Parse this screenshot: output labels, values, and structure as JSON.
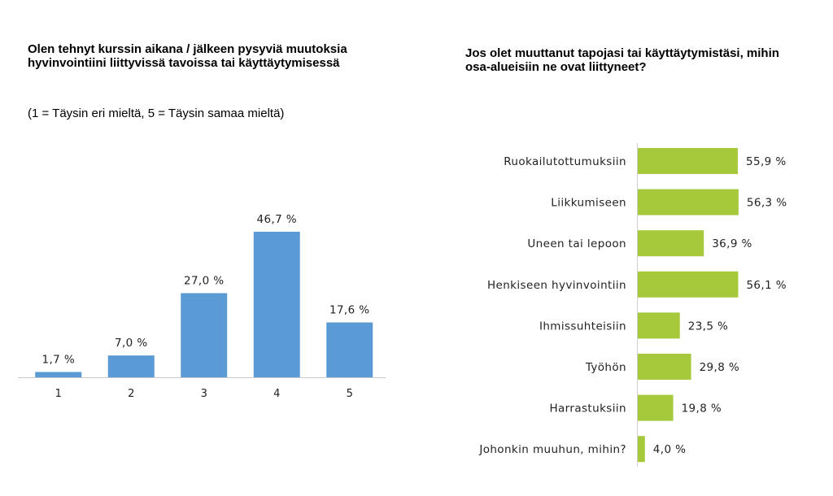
{
  "chart_data": [
    {
      "type": "bar",
      "title": "Olen tehnyt kurssin aikana / jälkeen pysyviä muutoksia hyvinvointiini liittyvissä tavoissa tai käyttäytymisessä",
      "subtitle": "(1 = Täysin eri mieltä, 5 = Täysin samaa mieltä)",
      "categories": [
        "1",
        "2",
        "3",
        "4",
        "5"
      ],
      "values": [
        1.7,
        7.0,
        27.0,
        46.7,
        17.6
      ],
      "value_labels": [
        "1,7 %",
        "7,0 %",
        "27,0 %",
        "46,7 %",
        "17,6 %"
      ],
      "ylim": [
        0,
        50
      ],
      "orientation": "vertical",
      "grid": false,
      "color": "#5b9bd5"
    },
    {
      "type": "bar",
      "title": "Jos olet muuttanut tapojasi tai käyttäytymistäsi, mihin osa-alueisiin ne ovat liittyneet?",
      "categories": [
        "Ruokailutottumuksiin",
        "Liikkumiseen",
        "Uneen tai lepoon",
        "Henkiseen hyvinvointiin",
        "Ihmissuhteisiin",
        "Työhön",
        "Harrastuksiin",
        "Johonkin muuhun, mihin?"
      ],
      "values": [
        55.9,
        56.3,
        36.9,
        56.1,
        23.5,
        29.8,
        19.8,
        4.0
      ],
      "value_labels": [
        "55,9 %",
        "56,3 %",
        "36,9 %",
        "56,1 %",
        "23,5 %",
        "29,8 %",
        "19,8 %",
        "4,0 %"
      ],
      "xlim": [
        0,
        60
      ],
      "orientation": "horizontal",
      "grid": false,
      "color": "#a5c93a"
    }
  ]
}
